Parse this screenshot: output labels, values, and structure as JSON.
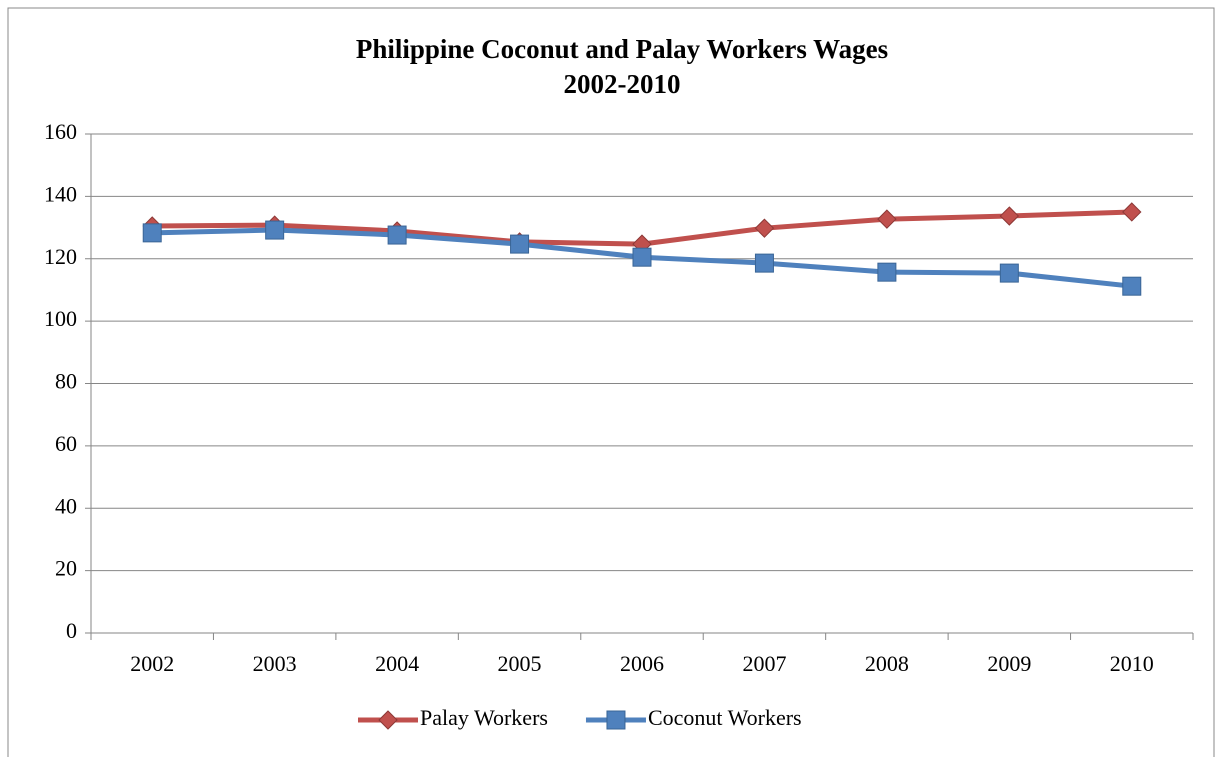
{
  "chart_data": {
    "type": "line",
    "title": [
      "Philippine Coconut and Palay Workers Wages",
      "2002-2010"
    ],
    "categories": [
      "2002",
      "2003",
      "2004",
      "2005",
      "2006",
      "2007",
      "2008",
      "2009",
      "2010"
    ],
    "series": [
      {
        "name": "Palay Workers",
        "color": "#c0504d",
        "marker": "diamond",
        "values": [
          130.5,
          130.8,
          128.9,
          125.4,
          124.7,
          129.8,
          132.7,
          133.7,
          135.0
        ]
      },
      {
        "name": "Coconut Workers",
        "color": "#4f81bd",
        "marker": "square",
        "values": [
          128.3,
          129.2,
          127.6,
          124.7,
          120.5,
          118.6,
          115.7,
          115.4,
          111.2
        ]
      }
    ],
    "ylim": [
      0,
      160
    ],
    "yticks": [
      0,
      20,
      40,
      60,
      80,
      100,
      120,
      140,
      160
    ],
    "grid": true,
    "legend": "bottom"
  }
}
